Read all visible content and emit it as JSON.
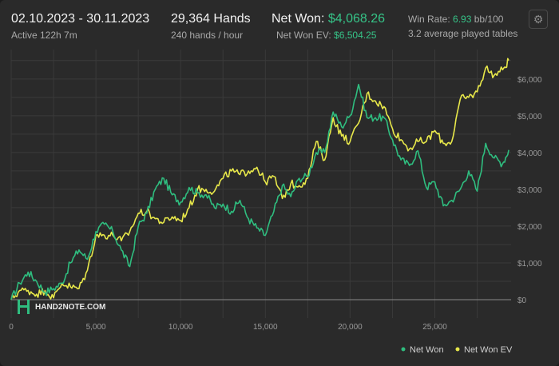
{
  "header": {
    "date_range": "02.10.2023 - 30.11.2023",
    "active": "Active 122h 7m",
    "hands": "29,364 Hands",
    "hands_rate": "240 hands / hour",
    "net_won_label": "Net Won:",
    "net_won_value": "$4,068.26",
    "net_won_ev_label": "Net Won  EV:",
    "net_won_ev_value": "$6,504.25",
    "win_rate_label": "Win Rate:",
    "win_rate_value": "6.93",
    "win_rate_unit": "bb/100",
    "avg_tables": "3.2 average played tables"
  },
  "icons": {
    "settings": "gear-icon",
    "logo": "hand2note-logo-icon"
  },
  "logo_text": "HAND2NOTE.COM",
  "colors": {
    "net_won": "#2fbd7f",
    "net_won_ev": "#e8e84a",
    "background": "#2a2a2a",
    "grid": "#3a3a3a",
    "zero_line": "#8a8a8a"
  },
  "chart_data": {
    "type": "line",
    "x_ticks": [
      "0",
      "5,000",
      "10,000",
      "15,000",
      "20,000",
      "25,000"
    ],
    "y_ticks": [
      "$0",
      "$1,000",
      "$2,000",
      "$3,000",
      "$4,000",
      "$5,000",
      "$6,000"
    ],
    "xlim": [
      0,
      29500
    ],
    "ylim": [
      -500,
      6800
    ],
    "grid": true,
    "legend_position": "bottom-right",
    "series": [
      {
        "name": "Net Won",
        "color": "#2fbd7f",
        "x": [
          0,
          500,
          1000,
          1500,
          2000,
          2500,
          3000,
          3500,
          4000,
          4500,
          5000,
          5500,
          6000,
          6500,
          7000,
          7500,
          8000,
          8500,
          9000,
          9500,
          10000,
          10500,
          11000,
          11500,
          12000,
          12500,
          13000,
          13500,
          14000,
          14500,
          15000,
          15500,
          16000,
          16500,
          17000,
          17500,
          18000,
          18500,
          19000,
          19500,
          20000,
          20500,
          21000,
          21500,
          22000,
          22500,
          23000,
          23500,
          24000,
          24500,
          25000,
          25500,
          26000,
          26500,
          27000,
          27500,
          28000,
          28500,
          29000,
          29364
        ],
        "values": [
          0,
          450,
          750,
          500,
          200,
          300,
          450,
          1000,
          1350,
          1100,
          1850,
          2050,
          1850,
          1350,
          900,
          2000,
          2350,
          3000,
          3300,
          2850,
          2650,
          3050,
          2900,
          2850,
          2500,
          2600,
          2400,
          2700,
          2200,
          1950,
          1750,
          2400,
          3100,
          2800,
          3300,
          3350,
          4000,
          4000,
          5100,
          4700,
          5000,
          5850,
          4950,
          4950,
          4950,
          4350,
          3800,
          3650,
          4050,
          3050,
          3200,
          2550,
          2700,
          3000,
          3500,
          2950,
          4250,
          3850,
          3700,
          4068.26
        ]
      },
      {
        "name": "Net Won  EV",
        "color": "#e8e84a",
        "x": [
          0,
          500,
          1000,
          1500,
          2000,
          2500,
          3000,
          3500,
          4000,
          4500,
          5000,
          5500,
          6000,
          6500,
          7000,
          7500,
          8000,
          8500,
          9000,
          9500,
          10000,
          10500,
          11000,
          11500,
          12000,
          12500,
          13000,
          13500,
          14000,
          14500,
          15000,
          15500,
          16000,
          16500,
          17000,
          17500,
          18000,
          18500,
          19000,
          19500,
          20000,
          20500,
          21000,
          21500,
          22000,
          22500,
          23000,
          23500,
          24000,
          24500,
          25000,
          25500,
          26000,
          26500,
          27000,
          27500,
          28000,
          28500,
          29000,
          29364
        ],
        "values": [
          0,
          250,
          250,
          150,
          250,
          50,
          450,
          350,
          300,
          800,
          1750,
          1750,
          1750,
          1600,
          1850,
          2350,
          2400,
          2200,
          2100,
          2250,
          2150,
          2500,
          3000,
          3000,
          2950,
          3300,
          3500,
          3400,
          3500,
          3600,
          3200,
          3350,
          2750,
          3150,
          3100,
          3300,
          4300,
          3800,
          4950,
          4450,
          4300,
          4800,
          5600,
          5400,
          5250,
          4650,
          4350,
          4100,
          4300,
          4300,
          4600,
          4250,
          4300,
          5450,
          5500,
          5650,
          6300,
          6100,
          6250,
          6504.25
        ]
      }
    ]
  }
}
